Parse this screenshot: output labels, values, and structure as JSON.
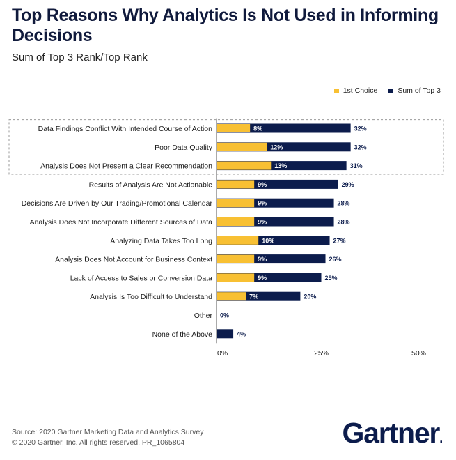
{
  "chart_data": {
    "type": "bar",
    "title": "Top Reasons Why Analytics Is Not Used in Informing Decisions",
    "subtitle": "Sum of Top 3 Rank/Top Rank",
    "categories": [
      "Data Findings Conflict With Intended Course of Action",
      "Poor Data Quality",
      "Analysis Does Not Present a Clear Recommendation",
      "Results of Analysis Are Not Actionable",
      "Decisions Are Driven by Our Trading/Promotional Calendar",
      "Analysis Does Not Incorporate Different Sources of Data",
      "Analyzing Data Takes Too Long",
      "Analysis Does Not Account for Business Context",
      "Lack of Access to Sales or Conversion Data",
      "Analysis Is Too Difficult to Understand",
      "Other",
      "None of the Above"
    ],
    "series": [
      {
        "name": "Sum of Top 3",
        "color": "#0c1c4c",
        "values": [
          32,
          32,
          31,
          29,
          28,
          28,
          27,
          26,
          25,
          20,
          0,
          4
        ],
        "labels": [
          "32%",
          "32%",
          "31%",
          "29%",
          "28%",
          "28%",
          "27%",
          "26%",
          "25%",
          "20%",
          "0%",
          "4%"
        ]
      },
      {
        "name": "1st Choice",
        "color": "#f8c033",
        "values": [
          8,
          12,
          13,
          9,
          9,
          9,
          10,
          9,
          9,
          7,
          null,
          null
        ],
        "labels": [
          "8%",
          "12%",
          "13%",
          "9%",
          "9%",
          "9%",
          "10%",
          "9%",
          "9%",
          "7%",
          "",
          ""
        ]
      }
    ],
    "legend_order": [
      "1st Choice",
      "Sum of Top 3"
    ],
    "legend_position": "top-right",
    "highlighted_rows": [
      0,
      1,
      2
    ],
    "xlim": [
      0,
      50
    ],
    "xticks": [
      0,
      25,
      50
    ],
    "xtick_labels": [
      "0%",
      "25%",
      "50%"
    ]
  },
  "source": {
    "line1": "Source: 2020 Gartner Marketing Data and Analytics Survey",
    "line2": "© 2020 Gartner, Inc. All rights reserved. PR_1065804"
  },
  "logo": {
    "text": "Gartner",
    "mark": "."
  }
}
